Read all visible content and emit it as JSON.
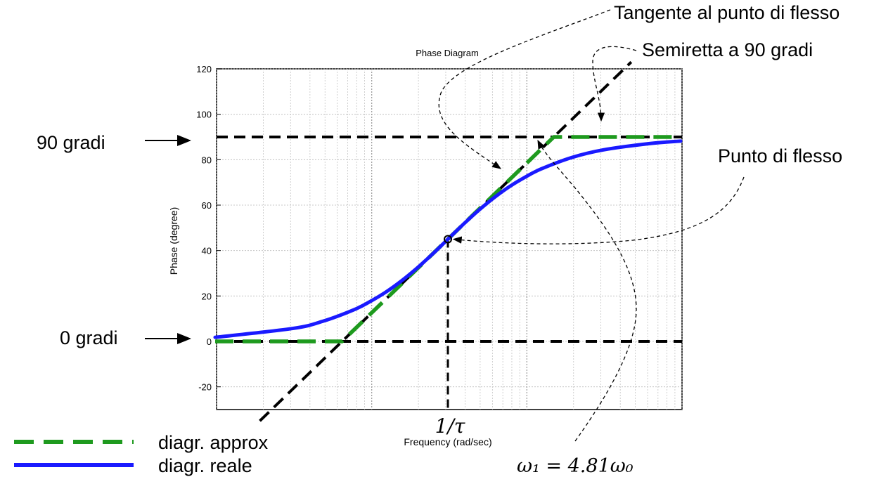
{
  "chart_data": {
    "type": "line",
    "title": "Phase Diagram",
    "xlabel": "Frequency (rad/sec)",
    "ylabel": "Phase (degree)",
    "x_scale": "log",
    "x_decades": 3,
    "ylim": [
      -30,
      120
    ],
    "yticks": [
      -20,
      0,
      20,
      40,
      60,
      80,
      100,
      120
    ],
    "grid": true,
    "x_marker_label": "1/τ",
    "series": [
      {
        "name": "diagr. reale",
        "style": "solid",
        "color": "#1a1aff",
        "points_log10_x": [
          -1.5,
          -1.0,
          -0.8,
          -0.6,
          -0.5,
          -0.4,
          -0.3,
          -0.2,
          -0.1,
          0.0,
          0.1,
          0.2,
          0.3,
          0.4,
          0.5,
          0.6,
          0.8,
          1.0,
          1.3,
          1.5
        ],
        "values": [
          1.8,
          5.7,
          9.0,
          14.1,
          17.6,
          21.7,
          26.6,
          32.2,
          38.4,
          45.0,
          51.6,
          57.8,
          63.4,
          68.3,
          72.4,
          75.9,
          81.0,
          84.3,
          87.1,
          88.2
        ]
      },
      {
        "name": "diagr. approx",
        "style": "dashed",
        "color": "#1e9a1e",
        "points_log10_x": [
          -1.5,
          -0.6823,
          0.6823,
          1.5
        ],
        "values": [
          0,
          0,
          90,
          90
        ]
      }
    ],
    "reference_lines": [
      {
        "kind": "horizontal",
        "y": 90
      },
      {
        "kind": "horizontal",
        "y": 0
      },
      {
        "kind": "vertical",
        "log10_x": 0
      },
      {
        "kind": "tangent",
        "slope_deg_per_decade": 66,
        "through_log10_x": 0,
        "through_y": 45
      }
    ],
    "inflection_point": {
      "log10_x": 0,
      "y": 45
    }
  },
  "annotations": {
    "tangente": "Tangente al punto di flesso",
    "semiretta": "Semiretta a 90 gradi",
    "punto_flesso": "Punto di flesso",
    "gradi_90": "90 gradi",
    "gradi_0": "0 gradi",
    "omega": "ω₁ = 4.81ω₀"
  },
  "legend": [
    {
      "label": "diagr. approx",
      "style": "dashed",
      "color": "#1e9a1e"
    },
    {
      "label": "diagr. reale",
      "style": "solid",
      "color": "#1a1aff"
    }
  ]
}
